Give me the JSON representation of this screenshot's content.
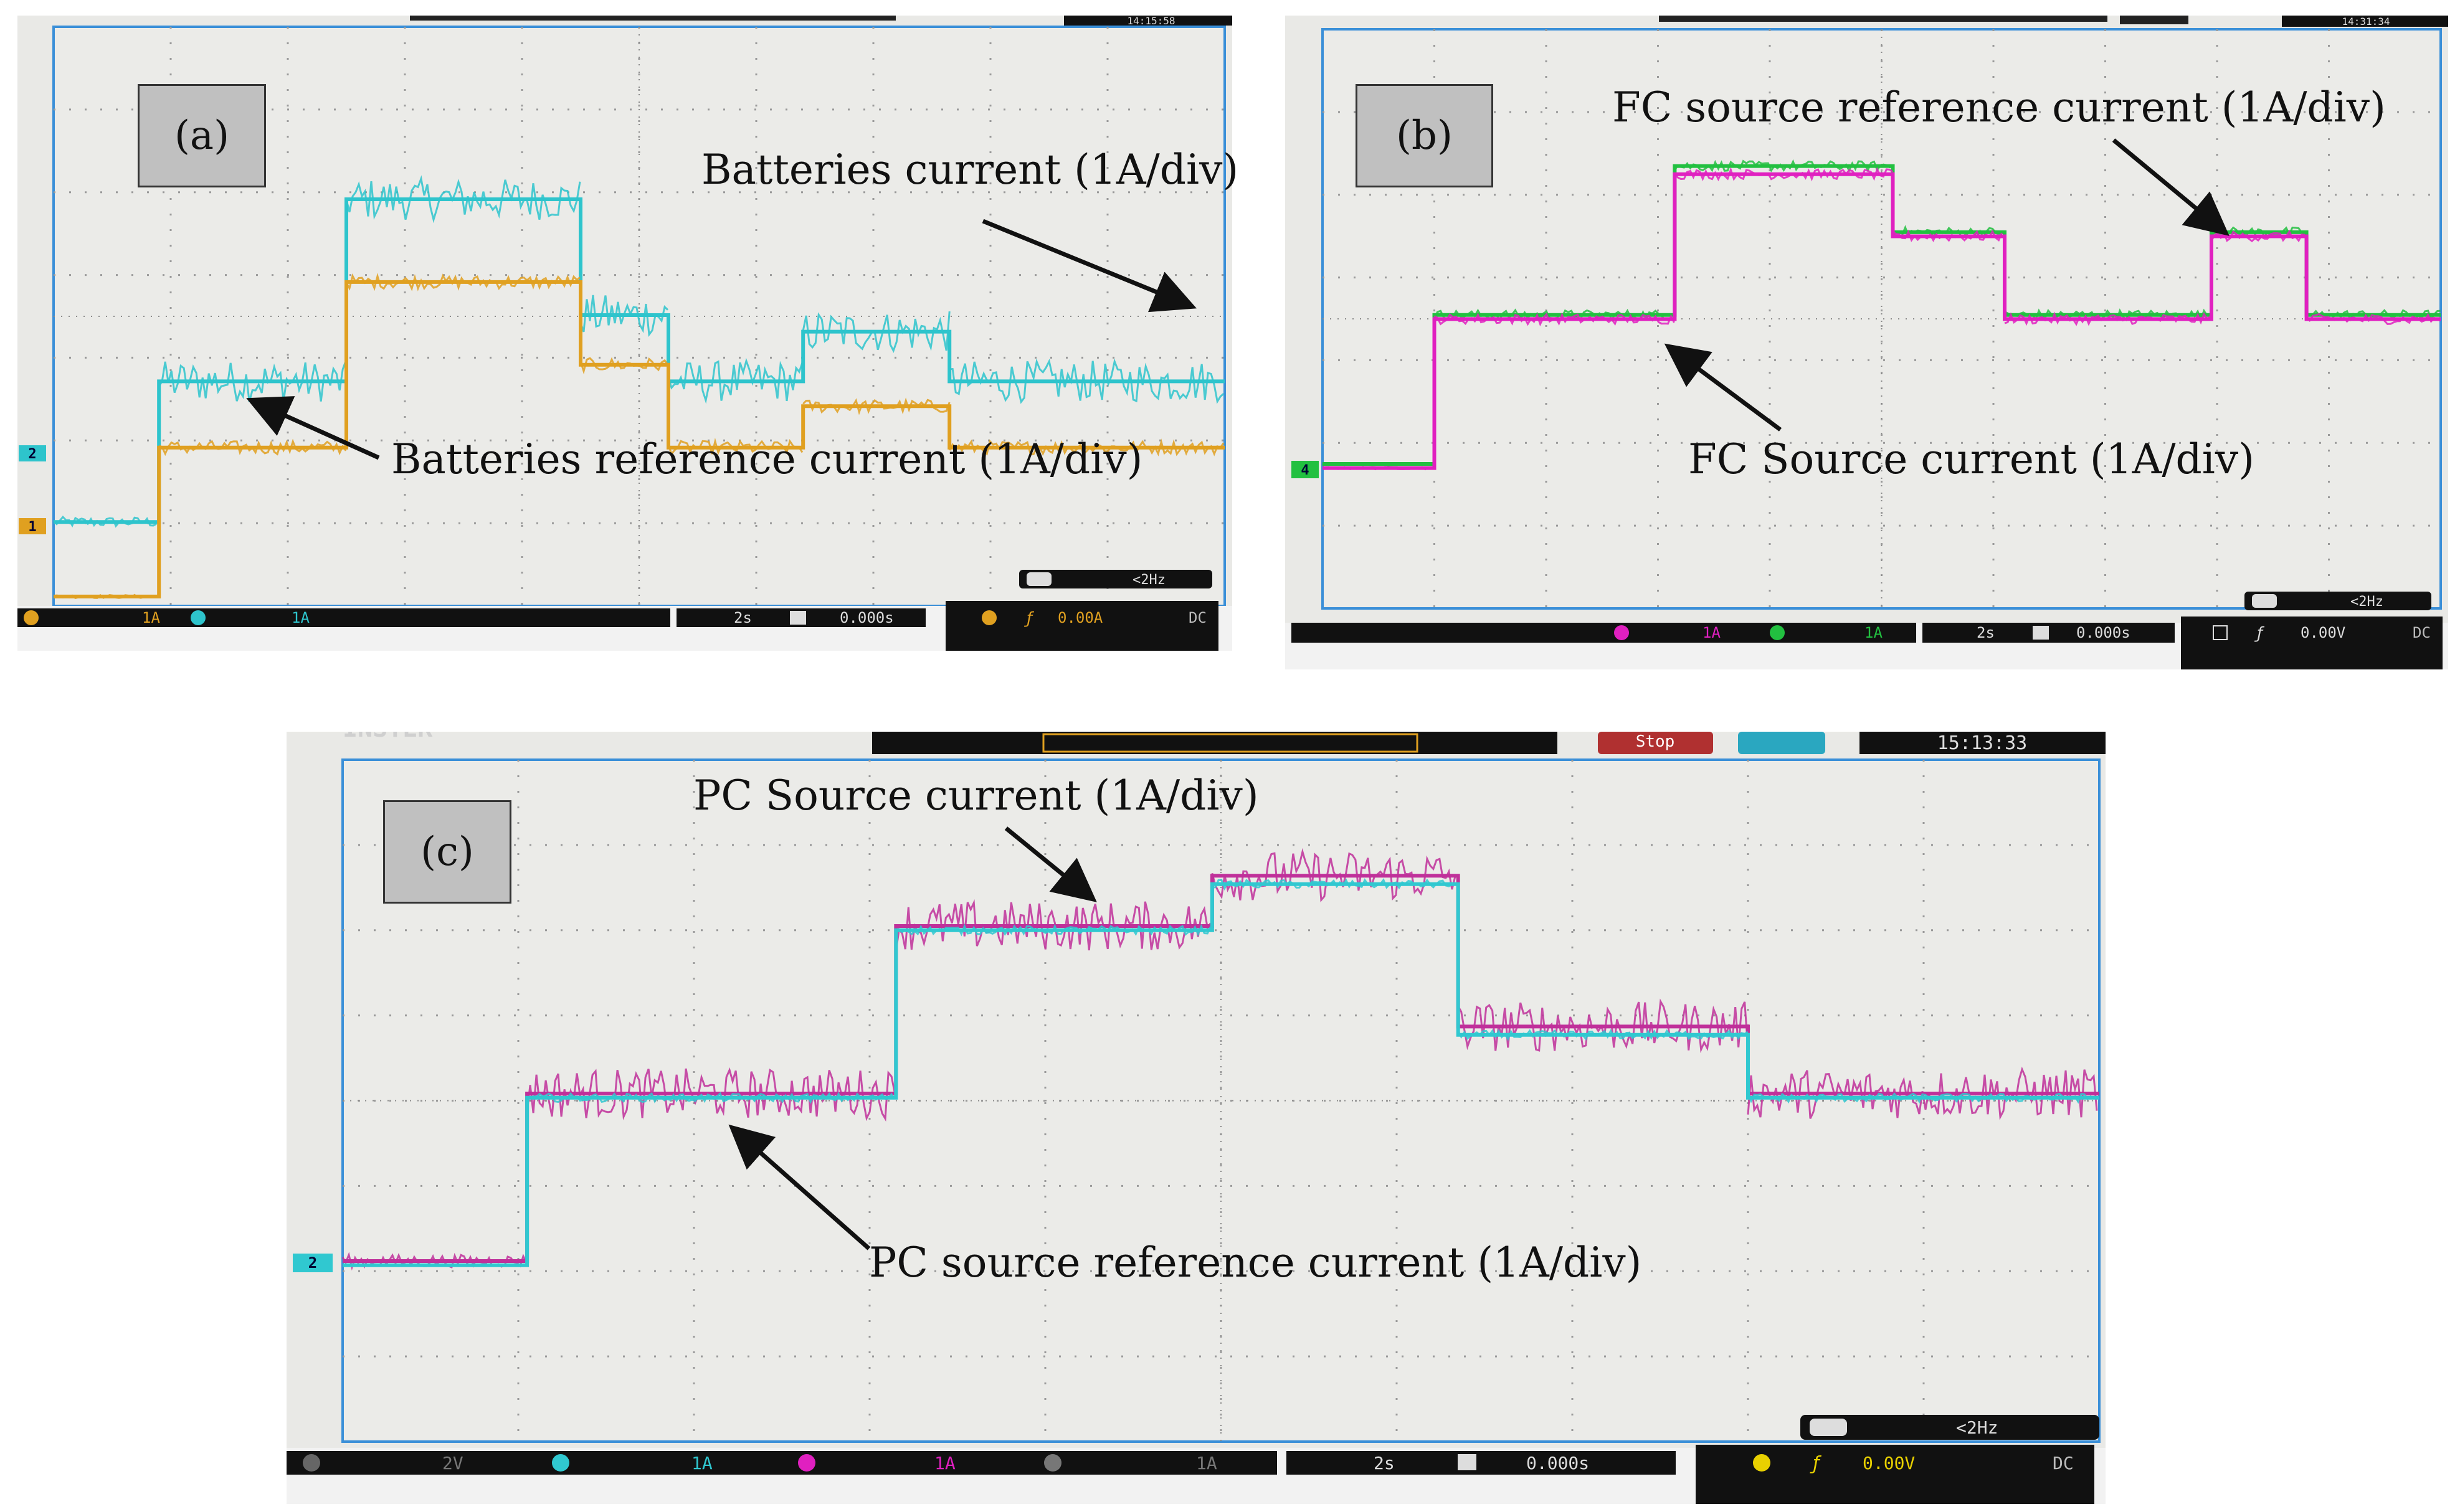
{
  "panels": [
    {
      "id": "a",
      "label": "(a)",
      "annotations": [
        {
          "text": "Batteries current (1A/div)"
        },
        {
          "text": "Batteries reference current (1A/div)"
        }
      ],
      "status": {
        "ch1_scale": "1A",
        "ch2_scale": "1A",
        "timebase": "2s",
        "h_pos": "0.000s",
        "trig_level": "0.00A",
        "coupling": "DC",
        "freq": "<2Hz",
        "clock": "14:15:58"
      },
      "markers": [
        "2",
        "1"
      ]
    },
    {
      "id": "b",
      "label": "(b)",
      "annotations": [
        {
          "text": "FC source reference current (1A/div)"
        },
        {
          "text": "FC Source current (1A/div)"
        }
      ],
      "status": {
        "ch3_scale": "1A",
        "ch4_scale": "1A",
        "timebase": "2s",
        "h_pos": "0.000s",
        "trig_level": "0.00V",
        "coupling": "DC",
        "freq": "<2Hz",
        "clock": "14:31:34"
      },
      "markers": [
        "4"
      ]
    },
    {
      "id": "c",
      "label": "(c)",
      "annotations": [
        {
          "text": "PC Source current (1A/div)"
        },
        {
          "text": "PC source reference current (1A/div)"
        }
      ],
      "status": {
        "ch1_scale": "2V",
        "ch2_scale": "1A",
        "ch3_scale": "1A",
        "ch4_scale": "1A",
        "timebase": "2s",
        "h_pos": "0.000s",
        "trig_level": "0.00V",
        "coupling": "DC",
        "freq": "<2Hz",
        "clock": "15:13:33",
        "run_state": "Stop",
        "brand_fragment": "INSTEK"
      },
      "markers": [
        "2"
      ]
    }
  ],
  "chart_data": [
    {
      "type": "line",
      "title": "",
      "xlabel": "",
      "ylabel": "",
      "x_divisions": 10,
      "y_divisions": 7,
      "x_unit": "s",
      "x": [
        0,
        2,
        4,
        6,
        8,
        10,
        12,
        14,
        16,
        18,
        20
      ],
      "grid": true,
      "series": [
        {
          "name": "Batteries current (1A/div)",
          "color": "#2ec4cc",
          "noise": 0.25,
          "steps": [
            [
              0,
              -0.1
            ],
            [
              1.8,
              -0.1
            ],
            [
              1.8,
              1.6
            ],
            [
              5.0,
              1.6
            ],
            [
              5.0,
              3.8
            ],
            [
              9.0,
              3.8
            ],
            [
              9.0,
              2.4
            ],
            [
              10.5,
              2.4
            ],
            [
              10.5,
              1.6
            ],
            [
              12.8,
              1.6
            ],
            [
              12.8,
              2.2
            ],
            [
              15.3,
              2.2
            ],
            [
              15.3,
              1.6
            ],
            [
              20,
              1.6
            ]
          ]
        },
        {
          "name": "Batteries reference current (1A/div)",
          "color": "#e0a020",
          "noise": 0.08,
          "steps": [
            [
              0,
              -1.0
            ],
            [
              1.8,
              -1.0
            ],
            [
              1.8,
              0.8
            ],
            [
              5.0,
              0.8
            ],
            [
              5.0,
              2.8
            ],
            [
              9.0,
              2.8
            ],
            [
              9.0,
              1.8
            ],
            [
              10.5,
              1.8
            ],
            [
              10.5,
              0.8
            ],
            [
              12.8,
              0.8
            ],
            [
              12.8,
              1.3
            ],
            [
              15.3,
              1.3
            ],
            [
              15.3,
              0.8
            ],
            [
              20,
              0.8
            ]
          ]
        }
      ]
    },
    {
      "type": "line",
      "title": "",
      "xlabel": "",
      "ylabel": "",
      "x_divisions": 10,
      "y_divisions": 7,
      "x_unit": "s",
      "x": [
        0,
        2,
        4,
        6,
        8,
        10,
        12,
        14,
        16,
        18,
        20
      ],
      "grid": true,
      "series": [
        {
          "name": "FC source reference current (1A/div)",
          "color": "#22c040",
          "noise": 0.06,
          "steps": [
            [
              0,
              0
            ],
            [
              2.0,
              0
            ],
            [
              2.0,
              1.8
            ],
            [
              6.3,
              1.8
            ],
            [
              6.3,
              3.6
            ],
            [
              10.2,
              3.6
            ],
            [
              10.2,
              2.8
            ],
            [
              12.2,
              2.8
            ],
            [
              12.2,
              1.8
            ],
            [
              15.9,
              1.8
            ],
            [
              15.9,
              2.8
            ],
            [
              17.6,
              2.8
            ],
            [
              17.6,
              1.8
            ],
            [
              20,
              1.8
            ]
          ]
        },
        {
          "name": "FC Source current (1A/div)",
          "color": "#e020c0",
          "noise": 0.06,
          "steps": [
            [
              0,
              -0.05
            ],
            [
              2.0,
              -0.05
            ],
            [
              2.0,
              1.75
            ],
            [
              6.3,
              1.75
            ],
            [
              6.3,
              3.5
            ],
            [
              10.2,
              3.5
            ],
            [
              10.2,
              2.75
            ],
            [
              12.2,
              2.75
            ],
            [
              12.2,
              1.75
            ],
            [
              15.9,
              1.75
            ],
            [
              15.9,
              2.75
            ],
            [
              17.6,
              2.75
            ],
            [
              17.6,
              1.75
            ],
            [
              20,
              1.75
            ]
          ]
        }
      ]
    },
    {
      "type": "line",
      "title": "",
      "xlabel": "",
      "ylabel": "",
      "x_divisions": 10,
      "y_divisions": 8,
      "x_unit": "s",
      "x": [
        0,
        2,
        4,
        6,
        8,
        10,
        12,
        14,
        16,
        18,
        20
      ],
      "grid": true,
      "series": [
        {
          "name": "PC Source current (1A/div)",
          "color": "#c0309a",
          "noise": 0.3,
          "steps": [
            [
              0,
              0
            ],
            [
              2.1,
              0
            ],
            [
              2.1,
              2.0
            ],
            [
              6.3,
              2.0
            ],
            [
              6.3,
              4.0
            ],
            [
              9.9,
              4.0
            ],
            [
              9.9,
              4.6
            ],
            [
              12.7,
              4.6
            ],
            [
              12.7,
              2.8
            ],
            [
              16.0,
              2.8
            ],
            [
              16.0,
              2.0
            ],
            [
              20,
              2.0
            ]
          ]
        },
        {
          "name": "PC source reference current (1A/div)",
          "color": "#30c8d0",
          "noise": 0.05,
          "steps": [
            [
              0,
              -0.05
            ],
            [
              2.1,
              -0.05
            ],
            [
              2.1,
              1.95
            ],
            [
              6.3,
              1.95
            ],
            [
              6.3,
              3.95
            ],
            [
              9.9,
              3.95
            ],
            [
              9.9,
              4.5
            ],
            [
              12.7,
              4.5
            ],
            [
              12.7,
              2.7
            ],
            [
              16.0,
              2.7
            ],
            [
              16.0,
              1.95
            ],
            [
              20,
              1.95
            ]
          ]
        }
      ]
    }
  ]
}
